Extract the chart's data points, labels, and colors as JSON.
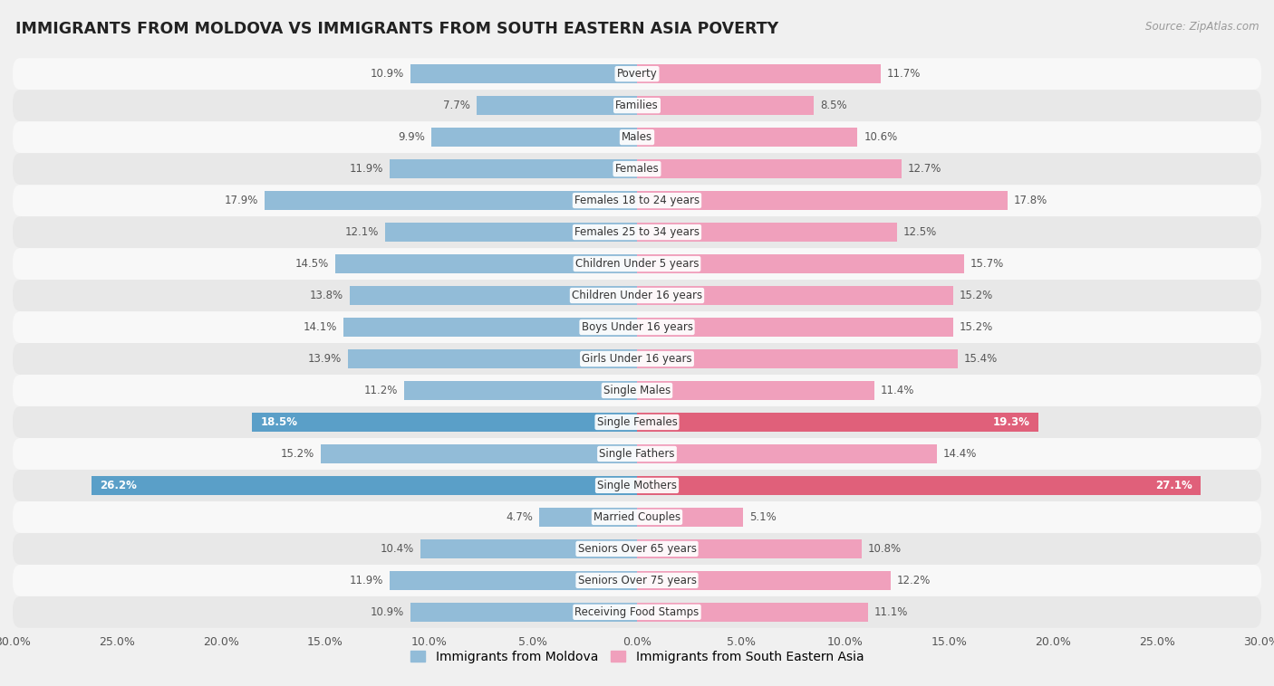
{
  "title": "IMMIGRANTS FROM MOLDOVA VS IMMIGRANTS FROM SOUTH EASTERN ASIA POVERTY",
  "source": "Source: ZipAtlas.com",
  "categories": [
    "Poverty",
    "Families",
    "Males",
    "Females",
    "Females 18 to 24 years",
    "Females 25 to 34 years",
    "Children Under 5 years",
    "Children Under 16 years",
    "Boys Under 16 years",
    "Girls Under 16 years",
    "Single Males",
    "Single Females",
    "Single Fathers",
    "Single Mothers",
    "Married Couples",
    "Seniors Over 65 years",
    "Seniors Over 75 years",
    "Receiving Food Stamps"
  ],
  "moldova_values": [
    10.9,
    7.7,
    9.9,
    11.9,
    17.9,
    12.1,
    14.5,
    13.8,
    14.1,
    13.9,
    11.2,
    18.5,
    15.2,
    26.2,
    4.7,
    10.4,
    11.9,
    10.9
  ],
  "sea_values": [
    11.7,
    8.5,
    10.6,
    12.7,
    17.8,
    12.5,
    15.7,
    15.2,
    15.2,
    15.4,
    11.4,
    19.3,
    14.4,
    27.1,
    5.1,
    10.8,
    12.2,
    11.1
  ],
  "moldova_color": "#92bcd8",
  "sea_color": "#f0a0bc",
  "highlight_indices": [
    11,
    13
  ],
  "highlight_moldova_color": "#5a9fc8",
  "highlight_sea_color": "#e0607a",
  "axis_limit": 30.0,
  "background_color": "#f0f0f0",
  "row_color_light": "#f8f8f8",
  "row_color_dark": "#e8e8e8",
  "legend_moldova": "Immigrants from Moldova",
  "legend_sea": "Immigrants from South Eastern Asia"
}
